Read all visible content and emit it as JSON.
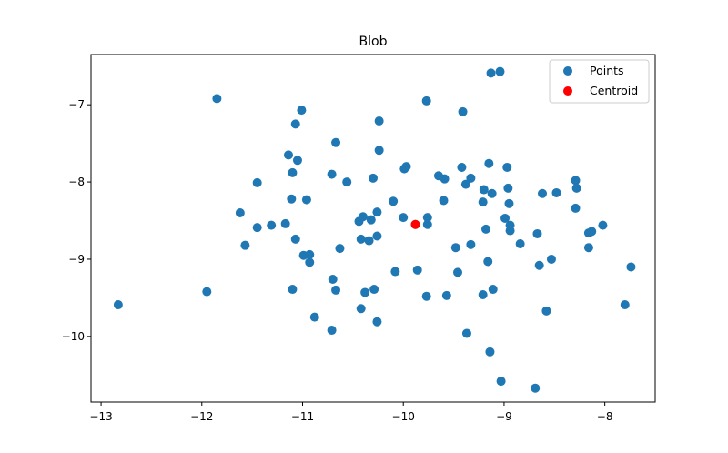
{
  "chart_data": {
    "type": "scatter",
    "title": "Blob",
    "xlabel": "",
    "ylabel": "",
    "xlim": [
      -13.1,
      -7.5
    ],
    "ylim": [
      -10.85,
      -6.35
    ],
    "xticks": [
      -13,
      -12,
      -11,
      -10,
      -9,
      -8
    ],
    "yticks": [
      -7,
      -8,
      -9,
      -10
    ],
    "xtick_labels": [
      "−13",
      "−12",
      "−11",
      "−10",
      "−9",
      "−8"
    ],
    "ytick_labels": [
      "−7",
      "−8",
      "−9",
      "−10"
    ],
    "grid": false,
    "legend": {
      "placement": "upper-right",
      "entries": [
        "Points",
        "Centroid"
      ]
    },
    "series": [
      {
        "name": "Points",
        "color": "#1f77b4",
        "points": [
          [
            -12.83,
            -9.59
          ],
          [
            -11.85,
            -6.92
          ],
          [
            -11.95,
            -9.42
          ],
          [
            -11.62,
            -8.4
          ],
          [
            -11.57,
            -8.82
          ],
          [
            -11.45,
            -8.01
          ],
          [
            -11.45,
            -8.59
          ],
          [
            -11.31,
            -8.56
          ],
          [
            -11.17,
            -8.54
          ],
          [
            -11.14,
            -7.65
          ],
          [
            -11.11,
            -8.22
          ],
          [
            -11.1,
            -7.88
          ],
          [
            -11.1,
            -9.39
          ],
          [
            -11.07,
            -7.25
          ],
          [
            -11.07,
            -8.74
          ],
          [
            -11.05,
            -7.72
          ],
          [
            -11.01,
            -7.07
          ],
          [
            -10.99,
            -8.95
          ],
          [
            -10.96,
            -8.23
          ],
          [
            -10.93,
            -8.94
          ],
          [
            -10.93,
            -9.04
          ],
          [
            -10.88,
            -9.75
          ],
          [
            -10.71,
            -7.9
          ],
          [
            -10.7,
            -9.26
          ],
          [
            -10.71,
            -9.92
          ],
          [
            -10.67,
            -7.49
          ],
          [
            -10.67,
            -9.4
          ],
          [
            -10.63,
            -8.86
          ],
          [
            -10.56,
            -8.0
          ],
          [
            -10.44,
            -8.51
          ],
          [
            -10.42,
            -8.74
          ],
          [
            -10.4,
            -8.45
          ],
          [
            -10.42,
            -9.64
          ],
          [
            -10.38,
            -9.43
          ],
          [
            -10.34,
            -8.76
          ],
          [
            -10.32,
            -8.49
          ],
          [
            -10.3,
            -7.95
          ],
          [
            -10.29,
            -9.39
          ],
          [
            -10.26,
            -8.7
          ],
          [
            -10.26,
            -9.81
          ],
          [
            -10.26,
            -8.39
          ],
          [
            -10.24,
            -7.59
          ],
          [
            -10.24,
            -7.21
          ],
          [
            -10.1,
            -8.25
          ],
          [
            -10.08,
            -9.16
          ],
          [
            -10.0,
            -8.46
          ],
          [
            -9.99,
            -7.83
          ],
          [
            -9.97,
            -7.8
          ],
          [
            -9.88,
            -8.55
          ],
          [
            -9.86,
            -9.14
          ],
          [
            -9.77,
            -6.95
          ],
          [
            -9.76,
            -8.55
          ],
          [
            -9.76,
            -8.46
          ],
          [
            -9.77,
            -9.48
          ],
          [
            -9.65,
            -7.92
          ],
          [
            -9.59,
            -7.96
          ],
          [
            -9.6,
            -8.24
          ],
          [
            -9.57,
            -9.47
          ],
          [
            -9.48,
            -8.85
          ],
          [
            -9.46,
            -9.17
          ],
          [
            -9.42,
            -7.81
          ],
          [
            -9.41,
            -7.09
          ],
          [
            -9.38,
            -8.03
          ],
          [
            -9.37,
            -9.96
          ],
          [
            -9.33,
            -8.81
          ],
          [
            -9.33,
            -7.95
          ],
          [
            -9.21,
            -8.26
          ],
          [
            -9.2,
            -8.1
          ],
          [
            -9.21,
            -9.46
          ],
          [
            -9.18,
            -8.61
          ],
          [
            -9.16,
            -9.03
          ],
          [
            -9.15,
            -7.76
          ],
          [
            -9.14,
            -10.2
          ],
          [
            -9.13,
            -6.59
          ],
          [
            -9.12,
            -8.15
          ],
          [
            -9.11,
            -9.39
          ],
          [
            -9.04,
            -6.57
          ],
          [
            -9.03,
            -10.58
          ],
          [
            -8.99,
            -8.47
          ],
          [
            -8.97,
            -7.81
          ],
          [
            -8.96,
            -8.08
          ],
          [
            -8.95,
            -8.28
          ],
          [
            -8.94,
            -8.56
          ],
          [
            -8.94,
            -8.63
          ],
          [
            -8.84,
            -8.8
          ],
          [
            -8.69,
            -10.67
          ],
          [
            -8.67,
            -8.67
          ],
          [
            -8.65,
            -9.08
          ],
          [
            -8.62,
            -8.15
          ],
          [
            -8.58,
            -9.67
          ],
          [
            -8.53,
            -9.0
          ],
          [
            -8.48,
            -8.14
          ],
          [
            -8.29,
            -7.98
          ],
          [
            -8.28,
            -8.08
          ],
          [
            -8.29,
            -8.34
          ],
          [
            -8.16,
            -8.66
          ],
          [
            -8.16,
            -8.85
          ],
          [
            -8.13,
            -8.64
          ],
          [
            -8.02,
            -8.56
          ],
          [
            -7.8,
            -9.59
          ],
          [
            -7.74,
            -9.1
          ]
        ]
      },
      {
        "name": "Centroid",
        "color": "#ff0000",
        "points": [
          [
            -9.88,
            -8.55
          ]
        ]
      }
    ]
  }
}
